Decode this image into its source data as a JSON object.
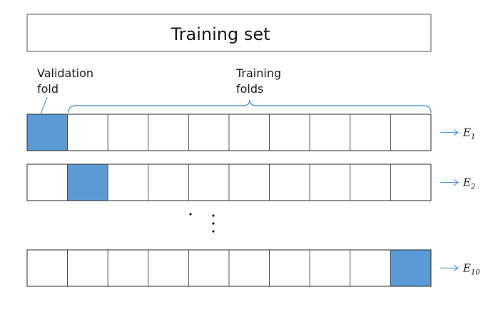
{
  "header": {
    "title": "Training set"
  },
  "labels": {
    "validation_line1": "Validation",
    "validation_line2": "fold",
    "training_line1": "Training",
    "training_line2": "folds"
  },
  "rows": [
    {
      "folds": 10,
      "validation_index": 0,
      "error_label": "E",
      "error_subscript": "1"
    },
    {
      "folds": 10,
      "validation_index": 1,
      "error_label": "E",
      "error_subscript": "2"
    },
    {
      "folds": 10,
      "validation_index": 9,
      "error_label": "E",
      "error_subscript": "10"
    }
  ],
  "colors": {
    "validation_fill": "#5b9bd5",
    "accent_line": "#5b9bd5",
    "cell_stroke": "#404040",
    "text": "#1a1a1a"
  }
}
